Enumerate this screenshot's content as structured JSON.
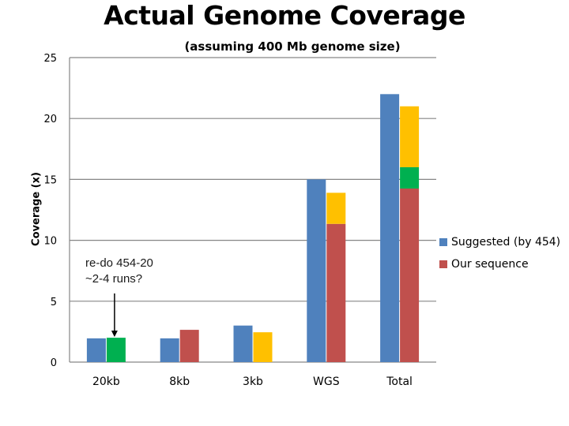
{
  "chart_data": {
    "type": "bar",
    "title": "Actual Genome Coverage",
    "subtitle": "(assuming 400 Mb genome size)",
    "ylabel": "Coverage (x)",
    "xlabel": "",
    "ylim": [
      0,
      25
    ],
    "yticks": [
      0,
      5,
      10,
      15,
      20,
      25
    ],
    "grid": true,
    "legend_position": "right",
    "categories": [
      "20kb",
      "8kb",
      "3kb",
      "WGS",
      "Total"
    ],
    "series": [
      {
        "name": "Suggested (by 454)",
        "color": "#4F81BD",
        "values": [
          1.95,
          1.95,
          3.0,
          15.0,
          22.0
        ]
      },
      {
        "name": "Our sequence",
        "color": "#C0504D",
        "values": [
          2.0,
          2.65,
          2.45,
          13.9,
          21.0
        ],
        "segments": [
          [
            {
              "value": 0,
              "color": "#C0504D"
            },
            {
              "value": 2.0,
              "color": "#00B050"
            },
            {
              "value": 0,
              "color": "#FFC000"
            }
          ],
          [
            {
              "value": 2.65,
              "color": "#C0504D"
            },
            {
              "value": 0,
              "color": "#00B050"
            },
            {
              "value": 0,
              "color": "#FFC000"
            }
          ],
          [
            {
              "value": 0,
              "color": "#C0504D"
            },
            {
              "value": 0,
              "color": "#00B050"
            },
            {
              "value": 2.45,
              "color": "#FFC000"
            }
          ],
          [
            {
              "value": 11.35,
              "color": "#C0504D"
            },
            {
              "value": 0,
              "color": "#00B050"
            },
            {
              "value": 2.55,
              "color": "#FFC000"
            }
          ],
          [
            {
              "value": 14.25,
              "color": "#C0504D"
            },
            {
              "value": 1.75,
              "color": "#00B050"
            },
            {
              "value": 5.0,
              "color": "#FFC000"
            }
          ]
        ]
      }
    ],
    "annotation": {
      "lines": [
        "re-do 454-20",
        "~2-4 runs?"
      ],
      "target_category": "20kb"
    }
  }
}
